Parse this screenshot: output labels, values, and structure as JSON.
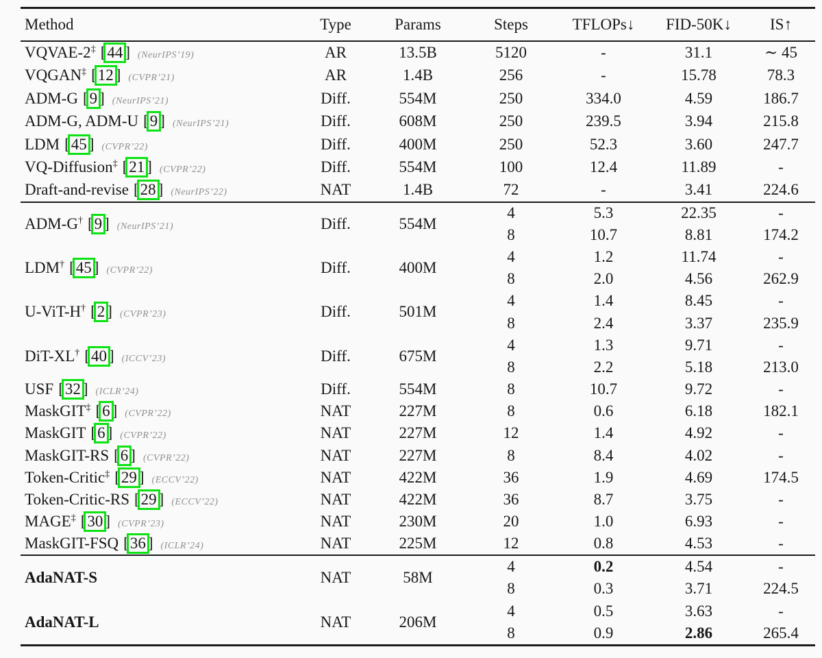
{
  "accent_green": "#0de213",
  "cite_brackets": {
    "open": "[",
    "close": "]"
  },
  "table": {
    "columns": [
      "Method",
      "Type",
      "Params",
      "Steps",
      "TFLOPs↓",
      "FID-50K↓",
      "IS↑"
    ],
    "sections": [
      {
        "rows": [
          {
            "method": "VQVAE-2",
            "sup": "‡",
            "cite": "44",
            "venue": "(NeurIPS’19)",
            "type": "AR",
            "params": "13.5B",
            "entries": [
              {
                "steps": "5120",
                "tflops": "-",
                "fid": "31.1",
                "is": "∼ 45"
              }
            ]
          },
          {
            "method": "VQGAN",
            "sup": "‡",
            "cite": "12",
            "venue": "(CVPR’21)",
            "type": "AR",
            "params": "1.4B",
            "entries": [
              {
                "steps": "256",
                "tflops": "-",
                "fid": "15.78",
                "is": "78.3"
              }
            ]
          },
          {
            "method": "ADM-G",
            "cite": "9",
            "venue": "(NeurIPS’21)",
            "type": "Diff.",
            "params": "554M",
            "entries": [
              {
                "steps": "250",
                "tflops": "334.0",
                "fid": "4.59",
                "is": "186.7"
              }
            ]
          },
          {
            "method": "ADM-G, ADM-U",
            "cite": "9",
            "venue": "(NeurIPS’21)",
            "type": "Diff.",
            "params": "608M",
            "entries": [
              {
                "steps": "250",
                "tflops": "239.5",
                "fid": "3.94",
                "is": "215.8"
              }
            ]
          },
          {
            "method": "LDM",
            "cite": "45",
            "venue": "(CVPR’22)",
            "type": "Diff.",
            "params": "400M",
            "entries": [
              {
                "steps": "250",
                "tflops": "52.3",
                "fid": "3.60",
                "is": "247.7"
              }
            ]
          },
          {
            "method": "VQ-Diffusion",
            "sup": "‡",
            "cite": "21",
            "venue": "(CVPR’22)",
            "type": "Diff.",
            "params": "554M",
            "entries": [
              {
                "steps": "100",
                "tflops": "12.4",
                "fid": "11.89",
                "is": "-"
              }
            ]
          },
          {
            "method": "Draft-and-revise",
            "cite": "28",
            "venue": "(NeurIPS’22)",
            "type": "NAT",
            "params": "1.4B",
            "entries": [
              {
                "steps": "72",
                "tflops": "-",
                "fid": "3.41",
                "is": "224.6"
              }
            ]
          }
        ]
      },
      {
        "rows": [
          {
            "method": "ADM-G",
            "sup": "†",
            "cite": "9",
            "venue": "(NeurIPS’21)",
            "type": "Diff.",
            "params": "554M",
            "entries": [
              {
                "steps": "4",
                "tflops": "5.3",
                "fid": "22.35",
                "is": "-"
              },
              {
                "steps": "8",
                "tflops": "10.7",
                "fid": "8.81",
                "is": "174.2"
              }
            ]
          },
          {
            "method": "LDM",
            "sup": "†",
            "cite": "45",
            "venue": "(CVPR’22)",
            "type": "Diff.",
            "params": "400M",
            "entries": [
              {
                "steps": "4",
                "tflops": "1.2",
                "fid": "11.74",
                "is": "-"
              },
              {
                "steps": "8",
                "tflops": "2.0",
                "fid": "4.56",
                "is": "262.9"
              }
            ]
          },
          {
            "method": "U-ViT-H",
            "sup": "†",
            "cite": "2",
            "venue": "(CVPR’23)",
            "type": "Diff.",
            "params": "501M",
            "entries": [
              {
                "steps": "4",
                "tflops": "1.4",
                "fid": "8.45",
                "is": "-"
              },
              {
                "steps": "8",
                "tflops": "2.4",
                "fid": "3.37",
                "is": "235.9"
              }
            ]
          },
          {
            "method": "DiT-XL",
            "sup": "†",
            "cite": "40",
            "venue": "(ICCV’23)",
            "type": "Diff.",
            "params": "675M",
            "entries": [
              {
                "steps": "4",
                "tflops": "1.3",
                "fid": "9.71",
                "is": "-"
              },
              {
                "steps": "8",
                "tflops": "2.2",
                "fid": "5.18",
                "is": "213.0"
              }
            ]
          },
          {
            "method": "USF",
            "cite": "32",
            "venue": "(ICLR’24)",
            "type": "Diff.",
            "params": "554M",
            "entries": [
              {
                "steps": "8",
                "tflops": "10.7",
                "fid": "9.72",
                "is": "-"
              }
            ]
          },
          {
            "method": "MaskGIT",
            "sup": "‡",
            "cite": "6",
            "venue": "(CVPR’22)",
            "type": "NAT",
            "params": "227M",
            "entries": [
              {
                "steps": "8",
                "tflops": "0.6",
                "fid": "6.18",
                "is": "182.1"
              }
            ]
          },
          {
            "method": "MaskGIT",
            "cite": "6",
            "venue": "(CVPR’22)",
            "type": "NAT",
            "params": "227M",
            "entries": [
              {
                "steps": "12",
                "tflops": "1.4",
                "fid": "4.92",
                "is": "-"
              }
            ]
          },
          {
            "method": "MaskGIT-RS",
            "cite": "6",
            "venue": "(CVPR’22)",
            "type": "NAT",
            "params": "227M",
            "entries": [
              {
                "steps": "8",
                "tflops": "8.4",
                "fid": "4.02",
                "is": "-"
              }
            ]
          },
          {
            "method": "Token-Critic",
            "sup": "‡",
            "cite": "29",
            "venue": "(ECCV’22)",
            "type": "NAT",
            "params": "422M",
            "entries": [
              {
                "steps": "36",
                "tflops": "1.9",
                "fid": "4.69",
                "is": "174.5"
              }
            ]
          },
          {
            "method": "Token-Critic-RS",
            "cite": "29",
            "venue": "(ECCV’22)",
            "type": "NAT",
            "params": "422M",
            "entries": [
              {
                "steps": "36",
                "tflops": "8.7",
                "fid": "3.75",
                "is": "-"
              }
            ]
          },
          {
            "method": "MAGE",
            "sup": "‡",
            "cite": "30",
            "venue": "(CVPR’23)",
            "type": "NAT",
            "params": "230M",
            "entries": [
              {
                "steps": "20",
                "tflops": "1.0",
                "fid": "6.93",
                "is": "-"
              }
            ]
          },
          {
            "method": "MaskGIT-FSQ",
            "cite": "36",
            "venue": "(ICLR’24)",
            "type": "NAT",
            "params": "225M",
            "entries": [
              {
                "steps": "12",
                "tflops": "0.8",
                "fid": "4.53",
                "is": "-"
              }
            ]
          }
        ]
      },
      {
        "rows": [
          {
            "method": "AdaNAT-S",
            "method_bold": true,
            "type": "NAT",
            "params": "58M",
            "entries": [
              {
                "steps": "4",
                "tflops": "0.2",
                "tflops_bold": true,
                "fid": "4.54",
                "is": "-"
              },
              {
                "steps": "8",
                "tflops": "0.3",
                "fid": "3.71",
                "is": "224.5"
              }
            ]
          },
          {
            "method": "AdaNAT-L",
            "method_bold": true,
            "type": "NAT",
            "params": "206M",
            "entries": [
              {
                "steps": "4",
                "tflops": "0.5",
                "fid": "3.63",
                "is": "-"
              },
              {
                "steps": "8",
                "tflops": "0.9",
                "fid": "2.86",
                "fid_bold": true,
                "is": "265.4"
              }
            ]
          }
        ]
      }
    ]
  }
}
